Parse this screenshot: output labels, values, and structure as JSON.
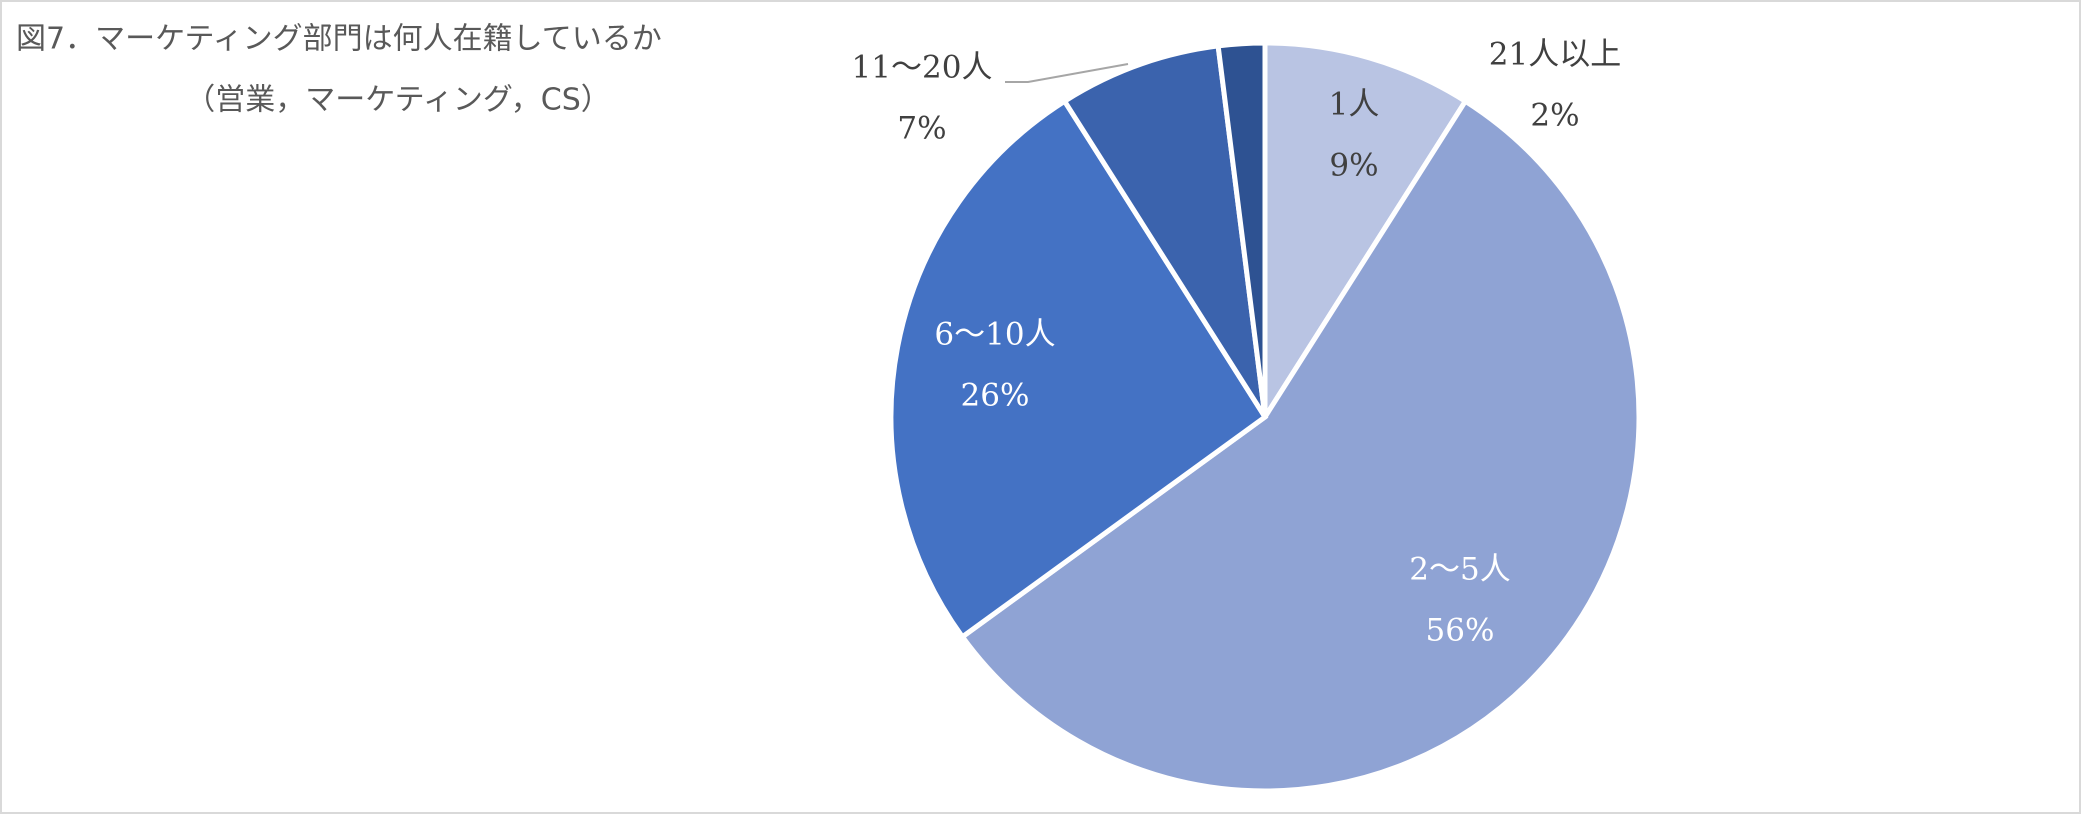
{
  "chart_data": {
    "type": "pie",
    "title": "図7．マーケティング部門は何人在籍しているか",
    "subtitle": "（営業，マーケティング，CS）",
    "categories": [
      "1人",
      "2〜5人",
      "6〜10人",
      "11〜20人",
      "21人以上"
    ],
    "values": [
      9,
      56,
      26,
      7,
      2
    ],
    "value_labels": [
      "9%",
      "56%",
      "26%",
      "7%",
      "2%"
    ],
    "colors": [
      "#b9c4e3",
      "#8fa3d4",
      "#4472c4",
      "#3b63ad",
      "#2e5292"
    ]
  }
}
